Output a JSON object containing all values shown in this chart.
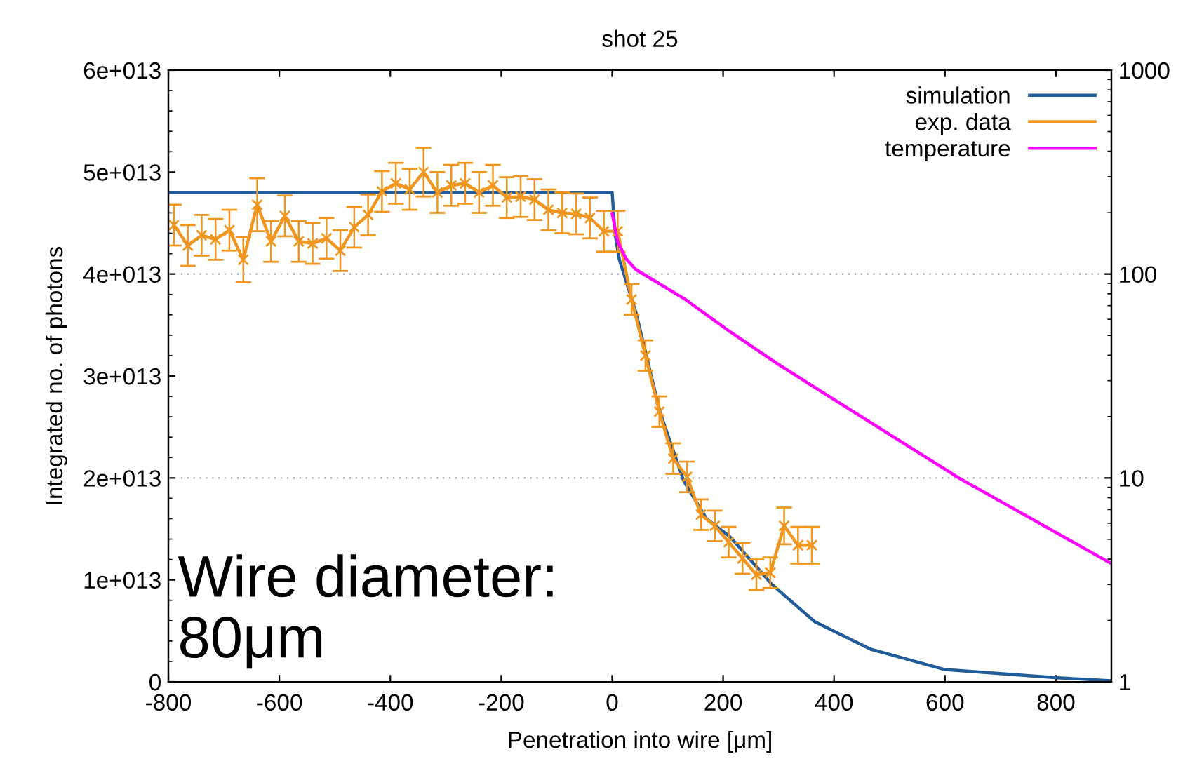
{
  "chart_data": {
    "type": "line",
    "title": "shot 25",
    "xlabel": "Penetration into wire [μm]",
    "ylabel": "Integrated no. of photons",
    "xlim": [
      -800,
      900
    ],
    "xticks": [
      -800,
      -600,
      -400,
      -200,
      0,
      200,
      400,
      600,
      800
    ],
    "ylim": [
      0,
      60000000000000.0
    ],
    "yticks": [
      {
        "value": 0,
        "label": "0"
      },
      {
        "value": 10000000000000.0,
        "label": "1e+013"
      },
      {
        "value": 20000000000000.0,
        "label": "2e+013"
      },
      {
        "value": 30000000000000.0,
        "label": "3e+013"
      },
      {
        "value": 40000000000000.0,
        "label": "4e+013"
      },
      {
        "value": 50000000000000.0,
        "label": "5e+013"
      },
      {
        "value": 60000000000000.0,
        "label": "6e+013"
      }
    ],
    "y2lim": [
      1,
      1000
    ],
    "y2ticks": [
      1,
      10,
      100,
      1000
    ],
    "log": "y2",
    "grid": "y",
    "legend": "top right",
    "annotations": [
      "Wire diameter:\n80μm"
    ],
    "series": [
      {
        "name": "simulation",
        "color": "#1f5c99",
        "marker": "none",
        "x": [
          -800,
          0,
          5,
          13,
          43,
          86,
          129,
          170,
          213,
          289,
          365,
          466,
          600,
          803,
          900
        ],
        "values": [
          48000000000000.0,
          48000000000000.0,
          44000000000000.0,
          41400000000000.0,
          36200000000000.0,
          26500000000000.0,
          19700000000000.0,
          16000000000000.0,
          14200000000000.0,
          9500000000000.0,
          5900000000000.0,
          3200000000000.0,
          1200000000000.0,
          400000000000.0,
          100000000000.0
        ]
      },
      {
        "name": "exp. data",
        "color": "#f0961e",
        "marker": "cross",
        "x": [
          -790,
          -765,
          -740,
          -715,
          -690,
          -665,
          -640,
          -615,
          -590,
          -565,
          -540,
          -515,
          -490,
          -465,
          -440,
          -415,
          -390,
          -365,
          -340,
          -315,
          -290,
          -265,
          -240,
          -215,
          -190,
          -165,
          -140,
          -115,
          -90,
          -65,
          -40,
          -15,
          10,
          35,
          60,
          85,
          110,
          135,
          160,
          185,
          210,
          235,
          260,
          285,
          310,
          335,
          360
        ],
        "values": [
          44800000000000.0,
          42800000000000.0,
          43800000000000.0,
          43400000000000.0,
          44300000000000.0,
          41400000000000.0,
          46800000000000.0,
          43200000000000.0,
          45700000000000.0,
          43200000000000.0,
          43000000000000.0,
          43500000000000.0,
          42300000000000.0,
          44600000000000.0,
          45800000000000.0,
          48100000000000.0,
          48900000000000.0,
          48300000000000.0,
          50000000000000.0,
          48000000000000.0,
          48700000000000.0,
          48900000000000.0,
          48000000000000.0,
          48700000000000.0,
          47500000000000.0,
          47600000000000.0,
          47300000000000.0,
          46300000000000.0,
          46000000000000.0,
          45900000000000.0,
          45500000000000.0,
          44200000000000.0,
          44200000000000.0,
          37500000000000.0,
          32000000000000.0,
          26500000000000.0,
          21900000000000.0,
          20100000000000.0,
          16400000000000.0,
          15300000000000.0,
          13700000000000.0,
          12100000000000.0,
          10500000000000.0,
          10700000000000.0,
          15300000000000.0,
          13400000000000.0,
          13400000000000.0
        ],
        "errors": [
          2000000000000.0,
          2000000000000.0,
          2000000000000.0,
          2000000000000.0,
          2000000000000.0,
          2200000000000.0,
          2600000000000.0,
          2000000000000.0,
          2000000000000.0,
          2000000000000.0,
          2000000000000.0,
          2000000000000.0,
          2000000000000.0,
          2000000000000.0,
          2000000000000.0,
          2000000000000.0,
          2000000000000.0,
          2000000000000.0,
          2400000000000.0,
          2000000000000.0,
          2000000000000.0,
          2000000000000.0,
          2000000000000.0,
          2000000000000.0,
          2000000000000.0,
          2000000000000.0,
          2000000000000.0,
          2000000000000.0,
          2000000000000.0,
          2000000000000.0,
          2000000000000.0,
          2000000000000.0,
          2000000000000.0,
          1500000000000.0,
          1500000000000.0,
          1500000000000.0,
          1500000000000.0,
          1500000000000.0,
          1500000000000.0,
          1500000000000.0,
          1500000000000.0,
          1500000000000.0,
          1500000000000.0,
          1500000000000.0,
          1800000000000.0,
          1800000000000.0,
          1800000000000.0
        ]
      },
      {
        "name": "temperature",
        "color": "#ff00ff",
        "marker": "none",
        "axis": "y2",
        "x": [
          0,
          10,
          25,
          43,
          129,
          213,
          300,
          382,
          625,
          900
        ],
        "values": [
          198,
          144,
          119,
          105,
          76,
          52,
          36,
          26,
          10,
          3.8
        ]
      }
    ]
  }
}
